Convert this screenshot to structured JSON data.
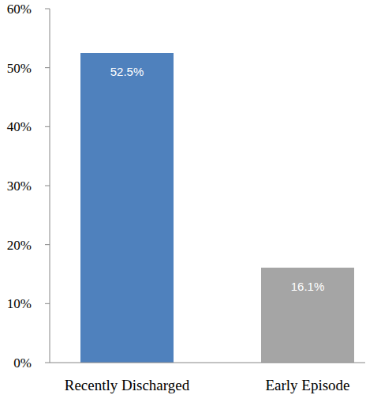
{
  "chart_data": {
    "type": "bar",
    "categories": [
      "Recently Discharged",
      "Early Episode"
    ],
    "values": [
      52.5,
      16.1
    ],
    "value_labels": [
      "52.5%",
      "16.1%"
    ],
    "colors": [
      "#4f81bd",
      "#a5a5a5"
    ],
    "ylim": [
      0,
      60
    ],
    "yticks": [
      {
        "value": 0,
        "label": "0%"
      },
      {
        "value": 10,
        "label": "10%"
      },
      {
        "value": 20,
        "label": "20%"
      },
      {
        "value": 30,
        "label": "30%"
      },
      {
        "value": 40,
        "label": "40%"
      },
      {
        "value": 50,
        "label": "50%"
      },
      {
        "value": 60,
        "label": "60%"
      }
    ],
    "grid": false,
    "data_labels": true
  }
}
